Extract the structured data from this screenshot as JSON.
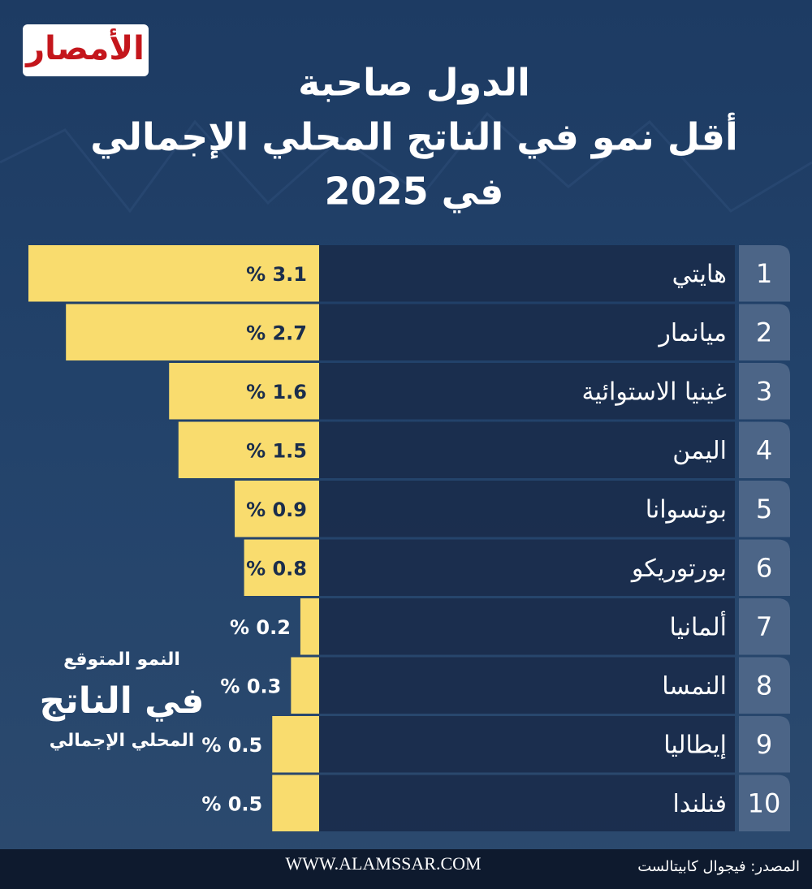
{
  "header": {
    "logo": "الأمصار"
  },
  "chart_data": {
    "type": "bar",
    "title": [
      "الدول صاحبة",
      "أقل نمو في الناتج المحلي الإجمالي",
      "في 2025"
    ],
    "ranks": [
      1,
      2,
      3,
      4,
      5,
      6,
      7,
      8,
      9,
      10
    ],
    "categories": [
      "هايتي",
      "ميانمار",
      "غينيا الاستوائية",
      "اليمن",
      "بوتسوانا",
      "بورتوريكو",
      "ألمانيا",
      "النمسا",
      "إيطاليا",
      "فنلندا"
    ],
    "values": [
      3.1,
      2.7,
      1.6,
      1.5,
      0.9,
      0.8,
      0.2,
      0.3,
      0.5,
      0.5
    ],
    "value_labels": [
      "% 3.1",
      "% 2.7",
      "% 1.6",
      "% 1.5",
      "% 0.9",
      "% 0.8",
      "% 0.2",
      "% 0.3",
      "% 0.5",
      "% 0.5"
    ],
    "color": "#f9dc6e",
    "annotation": [
      "النمو المتوقع",
      "في الناتج",
      "المحلي الإجمالي"
    ]
  },
  "footer": {
    "website": "WWW.ALAMSSAR.COM",
    "source": "المصدر: فيجوال كابيتالست"
  }
}
